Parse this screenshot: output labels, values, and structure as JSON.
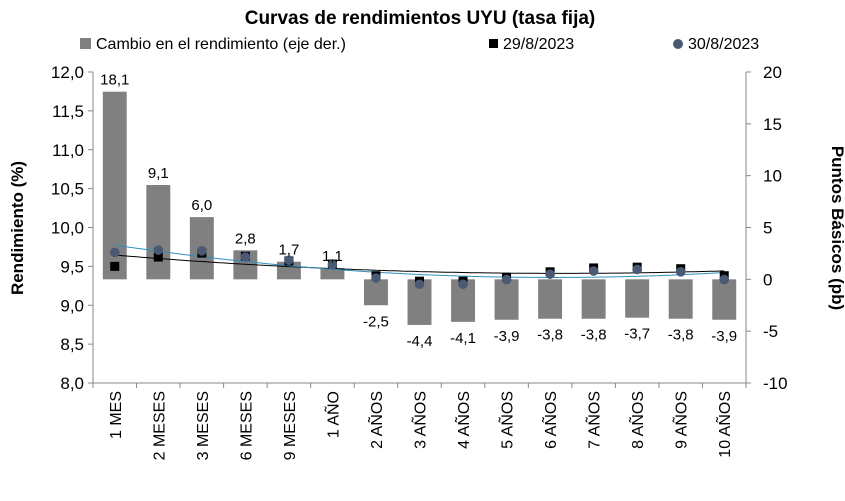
{
  "chart_data": {
    "type": "bar",
    "title": "Curvas de rendimientos UYU (tasa fija)",
    "ylabel": "Rendimiento (%)",
    "y2label": "Puntos Básicos (pb)",
    "ylim": [
      8.0,
      12.0
    ],
    "y2lim": [
      -10,
      20
    ],
    "yticks": [
      "8,0",
      "8,5",
      "9,0",
      "9,5",
      "10,0",
      "10,5",
      "11,0",
      "11,5",
      "12,0"
    ],
    "y2ticks": [
      "-10",
      "-5",
      "0",
      "5",
      "10",
      "15",
      "20"
    ],
    "grid": false,
    "legend_position": "top",
    "categories": [
      "1 MES",
      "2 MESES",
      "3 MESES",
      "6 MESES",
      "9 MESES",
      "1 AÑO",
      "2 AÑOS",
      "3 AÑOS",
      "4 AÑOS",
      "5 AÑOS",
      "6 AÑOS",
      "7 AÑOS",
      "8 AÑOS",
      "9 AÑOS",
      "10 AÑOS"
    ],
    "series": [
      {
        "name": "Cambio en el rendimiento (eje der.)",
        "type": "bar",
        "axis": "right",
        "color": "#808080",
        "values": [
          18.1,
          9.1,
          6.0,
          2.8,
          1.7,
          1.1,
          -2.5,
          -4.4,
          -4.1,
          -3.9,
          -3.8,
          -3.8,
          -3.7,
          -3.8,
          -3.9
        ],
        "labels": [
          "18,1",
          "9,1",
          "6,0",
          "2,8",
          "1,7",
          "1,1",
          "-2,5",
          "-4,4",
          "-4,1",
          "-3,9",
          "-3,8",
          "-3,8",
          "-3,7",
          "-3,8",
          "-3,9"
        ]
      },
      {
        "name": "29/8/2023",
        "type": "scatter",
        "axis": "left",
        "marker": "square",
        "color": "#000000",
        "trend_color": "#000000",
        "values": [
          9.5,
          9.62,
          9.67,
          9.63,
          9.57,
          9.53,
          9.38,
          9.31,
          9.31,
          9.36,
          9.43,
          9.48,
          9.49,
          9.47,
          9.38
        ]
      },
      {
        "name": "30/8/2023",
        "type": "scatter",
        "axis": "left",
        "marker": "circle",
        "color": "#4a5a74",
        "trend_color": "#2e8fbf",
        "values": [
          9.68,
          9.71,
          9.7,
          9.62,
          9.58,
          9.52,
          9.35,
          9.27,
          9.27,
          9.33,
          9.4,
          9.44,
          9.46,
          9.43,
          9.33
        ]
      }
    ]
  }
}
